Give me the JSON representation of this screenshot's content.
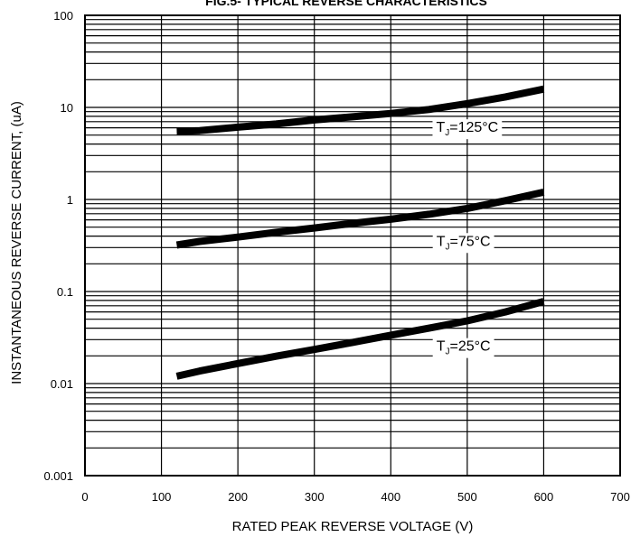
{
  "chart_data": {
    "type": "line",
    "title": "FIG.5- TYPICAL REVERSE CHARACTERISTICS",
    "xlabel": "RATED PEAK REVERSE VOLTAGE (V)",
    "ylabel": "INSTANTANEOUS REVERSE CURRENT, (uA)",
    "x_scale": "linear",
    "y_scale": "log",
    "xlim": [
      0,
      700
    ],
    "ylim": [
      0.001,
      100
    ],
    "x_ticks": [
      "0",
      "100",
      "200",
      "300",
      "400",
      "500",
      "600",
      "700"
    ],
    "y_ticks": [
      "0.001",
      "0.01",
      "0.1",
      "1",
      "10",
      "100"
    ],
    "grid": true,
    "series": [
      {
        "name": "TJ=125°C",
        "label_main": "T",
        "label_sub": "J",
        "label_rest": "=125°C",
        "label_x": 500,
        "label_y": 6.2,
        "points": [
          [
            120,
            5.5
          ],
          [
            150,
            5.6
          ],
          [
            200,
            6.1
          ],
          [
            250,
            6.6
          ],
          [
            300,
            7.3
          ],
          [
            350,
            7.9
          ],
          [
            400,
            8.6
          ],
          [
            450,
            9.5
          ],
          [
            500,
            11.0
          ],
          [
            550,
            13.0
          ],
          [
            600,
            15.8
          ]
        ]
      },
      {
        "name": "TJ=75°C",
        "label_main": "T",
        "label_sub": "J",
        "label_rest": "=75°C",
        "label_x": 495,
        "label_y": 0.36,
        "points": [
          [
            120,
            0.32
          ],
          [
            150,
            0.35
          ],
          [
            200,
            0.39
          ],
          [
            250,
            0.44
          ],
          [
            300,
            0.49
          ],
          [
            350,
            0.55
          ],
          [
            400,
            0.61
          ],
          [
            450,
            0.69
          ],
          [
            500,
            0.8
          ],
          [
            550,
            0.97
          ],
          [
            600,
            1.2
          ]
        ]
      },
      {
        "name": "TJ=25°C",
        "label_main": "T",
        "label_sub": "J",
        "label_rest": "=25°C",
        "label_x": 495,
        "label_y": 0.026,
        "points": [
          [
            120,
            0.012
          ],
          [
            150,
            0.0137
          ],
          [
            200,
            0.0165
          ],
          [
            250,
            0.0198
          ],
          [
            300,
            0.0235
          ],
          [
            350,
            0.028
          ],
          [
            400,
            0.0335
          ],
          [
            450,
            0.04
          ],
          [
            500,
            0.048
          ],
          [
            550,
            0.06
          ],
          [
            600,
            0.078
          ]
        ]
      }
    ]
  }
}
